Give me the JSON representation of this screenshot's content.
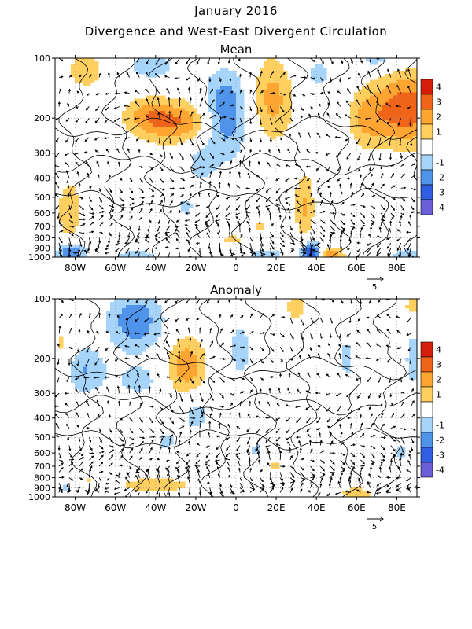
{
  "titles": {
    "line1": "January 2016",
    "line2": "Divergence and West-East Divergent Circulation"
  },
  "colors": {
    "neg4": "#6a5fd6",
    "neg3": "#2f5fe0",
    "neg2": "#4f93ea",
    "neg1": "#a6d4fa",
    "zero": "#ffffff",
    "pos1": "#ffd060",
    "pos2": "#ffa532",
    "pos3": "#f0641a",
    "pos4": "#d41e0a"
  },
  "chart_data": [
    {
      "type": "heatmap",
      "title": "Mean",
      "xlabel": "",
      "ylabel": "",
      "x_ticks": [
        "80W",
        "60W",
        "40W",
        "20W",
        "0",
        "20E",
        "40E",
        "60E",
        "80E"
      ],
      "x_tick_values": [
        -80,
        -60,
        -40,
        -20,
        0,
        20,
        40,
        60,
        80
      ],
      "xlim": [
        -90,
        90
      ],
      "y_ticks": [
        "100",
        "200",
        "300",
        "400",
        "500",
        "600",
        "700",
        "800",
        "900",
        "1000"
      ],
      "y_tick_values": [
        100,
        200,
        300,
        400,
        500,
        600,
        700,
        800,
        900,
        1000
      ],
      "ylim": [
        1000,
        100
      ],
      "y_scale": "log",
      "colorbar": {
        "levels": [
          -4,
          -3,
          -2,
          -1,
          1,
          2,
          3,
          4
        ],
        "labels": [
          "4",
          "3",
          "2",
          "1",
          "-1",
          "-2",
          "-3",
          "-4"
        ]
      },
      "vector_reference": "5",
      "features": [
        {
          "sign": 1,
          "lon": -75,
          "p": 115,
          "amp": 1.6,
          "sx": 7,
          "sy": 0.18
        },
        {
          "sign": 1,
          "lon": -30,
          "p": 210,
          "amp": 3.0,
          "sx": 14,
          "sy": 0.18
        },
        {
          "sign": 1,
          "lon": -45,
          "p": 190,
          "amp": 1.5,
          "sx": 8,
          "sy": 0.14
        },
        {
          "sign": 1,
          "lon": 18,
          "p": 160,
          "amp": 2.4,
          "sx": 8,
          "sy": 0.35
        },
        {
          "sign": 1,
          "lon": 85,
          "p": 180,
          "amp": 3.8,
          "sx": 11,
          "sy": 0.3
        },
        {
          "sign": 1,
          "lon": 65,
          "p": 200,
          "amp": 2.0,
          "sx": 7,
          "sy": 0.25
        },
        {
          "sign": 1,
          "lon": -83,
          "p": 580,
          "amp": 2.0,
          "sx": 4,
          "sy": 0.25
        },
        {
          "sign": 1,
          "lon": 34,
          "p": 560,
          "amp": 2.2,
          "sx": 3.5,
          "sy": 0.28
        },
        {
          "sign": 1,
          "lon": 12,
          "p": 700,
          "amp": 1.2,
          "sx": 3,
          "sy": 0.08
        },
        {
          "sign": 1,
          "lon": -2,
          "p": 810,
          "amp": 1.2,
          "sx": 7,
          "sy": 0.05
        },
        {
          "sign": 1,
          "lon": 48,
          "p": 980,
          "amp": 3.0,
          "sx": 4,
          "sy": 0.07
        },
        {
          "sign": -1,
          "lon": -42,
          "p": 110,
          "amp": 1.6,
          "sx": 10,
          "sy": 0.12
        },
        {
          "sign": -1,
          "lon": -5,
          "p": 190,
          "amp": 3.2,
          "sx": 8,
          "sy": 0.35
        },
        {
          "sign": -1,
          "lon": -18,
          "p": 330,
          "amp": 1.3,
          "sx": 6,
          "sy": 0.2
        },
        {
          "sign": -1,
          "lon": -25,
          "p": 560,
          "amp": 1.1,
          "sx": 5,
          "sy": 0.15
        },
        {
          "sign": -1,
          "lon": 40,
          "p": 120,
          "amp": 1.3,
          "sx": 7,
          "sy": 0.15
        },
        {
          "sign": -1,
          "lon": 70,
          "p": 100,
          "amp": 1.6,
          "sx": 8,
          "sy": 0.1
        },
        {
          "sign": -1,
          "lon": -82,
          "p": 950,
          "amp": 3.2,
          "sx": 5,
          "sy": 0.09
        },
        {
          "sign": -1,
          "lon": 37,
          "p": 950,
          "amp": 4.0,
          "sx": 3.5,
          "sy": 0.1
        },
        {
          "sign": -1,
          "lon": 15,
          "p": 960,
          "amp": 1.6,
          "sx": 8,
          "sy": 0.05
        },
        {
          "sign": -1,
          "lon": -50,
          "p": 990,
          "amp": 1.8,
          "sx": 8,
          "sy": 0.05
        },
        {
          "sign": -1,
          "lon": 85,
          "p": 980,
          "amp": 2.0,
          "sx": 5,
          "sy": 0.06
        }
      ]
    },
    {
      "type": "heatmap",
      "title": "Anomaly",
      "xlabel": "",
      "ylabel": "",
      "x_ticks": [
        "80W",
        "60W",
        "40W",
        "20W",
        "0",
        "20E",
        "40E",
        "60E",
        "80E"
      ],
      "x_tick_values": [
        -80,
        -60,
        -40,
        -20,
        0,
        20,
        40,
        60,
        80
      ],
      "xlim": [
        -90,
        90
      ],
      "y_ticks": [
        "100",
        "200",
        "300",
        "400",
        "500",
        "600",
        "700",
        "800",
        "900",
        "1000"
      ],
      "y_tick_values": [
        100,
        200,
        300,
        400,
        500,
        600,
        700,
        800,
        900,
        1000
      ],
      "ylim": [
        1000,
        100
      ],
      "y_scale": "log",
      "colorbar": {
        "levels": [
          -4,
          -3,
          -2,
          -1,
          1,
          2,
          3,
          4
        ],
        "labels": [
          "4",
          "3",
          "2",
          "1",
          "-1",
          "-2",
          "-3",
          "-4"
        ]
      },
      "vector_reference": "5",
      "features": [
        {
          "sign": -1,
          "lon": -50,
          "p": 130,
          "amp": 2.8,
          "sx": 10,
          "sy": 0.25
        },
        {
          "sign": -1,
          "lon": -75,
          "p": 230,
          "amp": 2.0,
          "sx": 7,
          "sy": 0.2
        },
        {
          "sign": -1,
          "lon": -48,
          "p": 260,
          "amp": 1.3,
          "sx": 10,
          "sy": 0.15
        },
        {
          "sign": -1,
          "lon": 2,
          "p": 180,
          "amp": 1.5,
          "sx": 4,
          "sy": 0.28
        },
        {
          "sign": -1,
          "lon": -20,
          "p": 380,
          "amp": 1.5,
          "sx": 6,
          "sy": 0.18
        },
        {
          "sign": -1,
          "lon": -35,
          "p": 520,
          "amp": 1.2,
          "sx": 5,
          "sy": 0.12
        },
        {
          "sign": -1,
          "lon": 55,
          "p": 200,
          "amp": 1.5,
          "sx": 3,
          "sy": 0.18
        },
        {
          "sign": -1,
          "lon": 88,
          "p": 200,
          "amp": 1.3,
          "sx": 4,
          "sy": 0.35
        },
        {
          "sign": -1,
          "lon": 10,
          "p": 580,
          "amp": 1.1,
          "sx": 4,
          "sy": 0.15
        },
        {
          "sign": -1,
          "lon": 82,
          "p": 600,
          "amp": 1.1,
          "sx": 4,
          "sy": 0.15
        },
        {
          "sign": 1,
          "lon": -25,
          "p": 220,
          "amp": 2.8,
          "sx": 7,
          "sy": 0.25
        },
        {
          "sign": 1,
          "lon": -87,
          "p": 170,
          "amp": 1.3,
          "sx": 3,
          "sy": 0.15
        },
        {
          "sign": 1,
          "lon": 30,
          "p": 110,
          "amp": 1.6,
          "sx": 4,
          "sy": 0.12
        },
        {
          "sign": 1,
          "lon": 88,
          "p": 110,
          "amp": 1.6,
          "sx": 4,
          "sy": 0.12
        },
        {
          "sign": 1,
          "lon": 20,
          "p": 700,
          "amp": 1.3,
          "sx": 3,
          "sy": 0.06
        },
        {
          "sign": 1,
          "lon": -40,
          "p": 870,
          "amp": 1.8,
          "sx": 14,
          "sy": 0.07
        },
        {
          "sign": 1,
          "lon": 60,
          "p": 960,
          "amp": 1.8,
          "sx": 6,
          "sy": 0.05
        },
        {
          "sign": 1,
          "lon": -73,
          "p": 820,
          "amp": 1.1,
          "sx": 2,
          "sy": 0.04
        },
        {
          "sign": -1,
          "lon": -85,
          "p": 900,
          "amp": 1.1,
          "sx": 3,
          "sy": 0.05
        }
      ]
    }
  ]
}
